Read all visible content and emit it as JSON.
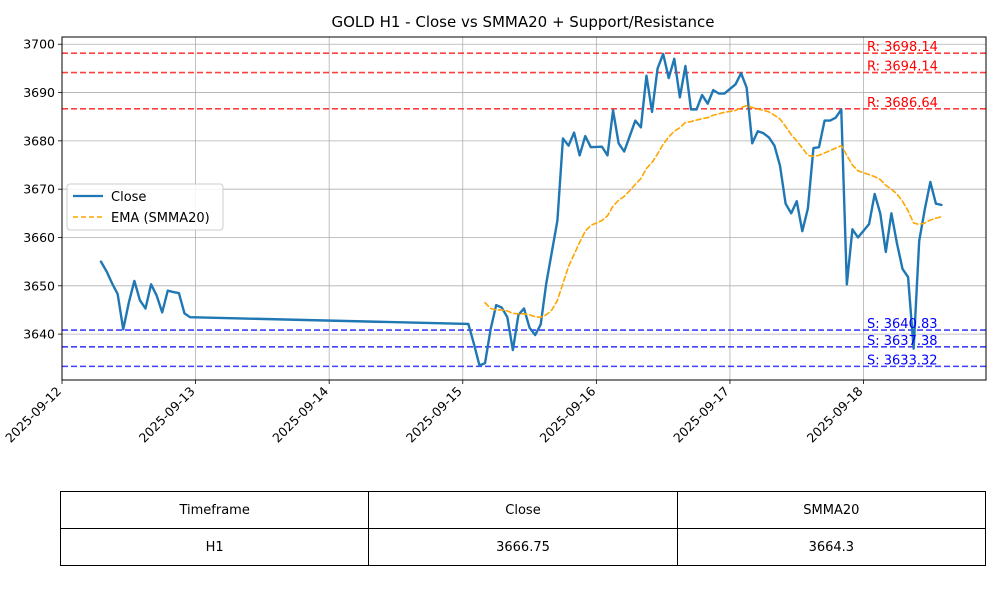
{
  "chart_data": {
    "type": "line",
    "title": "GOLD H1 - Close vs SMMA20 + Support/Resistance",
    "xlabel": "",
    "ylabel": "",
    "xlim": [
      "2025-09-12 00:00",
      "2025-09-18 22:00"
    ],
    "ylim": [
      3630.5,
      3701.5
    ],
    "x_ticks": [
      "2025-09-12",
      "2025-09-13",
      "2025-09-14",
      "2025-09-15",
      "2025-09-16",
      "2025-09-17",
      "2025-09-18"
    ],
    "y_ticks": [
      3640,
      3650,
      3660,
      3670,
      3680,
      3690,
      3700
    ],
    "grid": true,
    "legend": "center-left",
    "series": [
      {
        "name": "Close",
        "color": "#1f77b4",
        "style": "solid",
        "points": [
          [
            "2025-09-12 07:00",
            3655.0
          ],
          [
            "2025-09-12 08:00",
            3653.0
          ],
          [
            "2025-09-12 09:00",
            3650.5
          ],
          [
            "2025-09-12 10:00",
            3648.3
          ],
          [
            "2025-09-12 11:00",
            3641.0
          ],
          [
            "2025-09-12 12:00",
            3646.5
          ],
          [
            "2025-09-12 13:00",
            3651.0
          ],
          [
            "2025-09-12 14:00",
            3647.0
          ],
          [
            "2025-09-12 15:00",
            3645.3
          ],
          [
            "2025-09-12 16:00",
            3650.3
          ],
          [
            "2025-09-12 17:00",
            3648.0
          ],
          [
            "2025-09-12 18:00",
            3644.5
          ],
          [
            "2025-09-12 19:00",
            3649.0
          ],
          [
            "2025-09-12 20:00",
            3648.7
          ],
          [
            "2025-09-12 21:00",
            3648.5
          ],
          [
            "2025-09-12 22:00",
            3644.3
          ],
          [
            "2025-09-12 23:00",
            3643.5
          ],
          [
            "2025-09-15 01:00",
            3642.1
          ],
          [
            "2025-09-15 02:00",
            3638.0
          ],
          [
            "2025-09-15 03:00",
            3633.5
          ],
          [
            "2025-09-15 04:00",
            3634.0
          ],
          [
            "2025-09-15 05:00",
            3641.0
          ],
          [
            "2025-09-15 06:00",
            3646.0
          ],
          [
            "2025-09-15 07:00",
            3645.5
          ],
          [
            "2025-09-15 08:00",
            3643.5
          ],
          [
            "2025-09-15 09:00",
            3636.7
          ],
          [
            "2025-09-15 10:00",
            3644.0
          ],
          [
            "2025-09-15 11:00",
            3645.3
          ],
          [
            "2025-09-15 12:00",
            3641.3
          ],
          [
            "2025-09-15 13:00",
            3639.8
          ],
          [
            "2025-09-15 14:00",
            3642.0
          ],
          [
            "2025-09-15 15:00",
            3650.5
          ],
          [
            "2025-09-15 16:00",
            3657.0
          ],
          [
            "2025-09-15 17:00",
            3663.5
          ],
          [
            "2025-09-15 18:00",
            3680.5
          ],
          [
            "2025-09-15 19:00",
            3679.0
          ],
          [
            "2025-09-15 20:00",
            3681.7
          ],
          [
            "2025-09-15 21:00",
            3677.0
          ],
          [
            "2025-09-15 22:00",
            3681.0
          ],
          [
            "2025-09-15 23:00",
            3678.7
          ],
          [
            "2025-09-16 01:00",
            3678.8
          ],
          [
            "2025-09-16 02:00",
            3677.0
          ],
          [
            "2025-09-16 03:00",
            3686.3
          ],
          [
            "2025-09-16 04:00",
            3679.5
          ],
          [
            "2025-09-16 05:00",
            3677.8
          ],
          [
            "2025-09-16 06:00",
            3681.0
          ],
          [
            "2025-09-16 07:00",
            3684.2
          ],
          [
            "2025-09-16 08:00",
            3682.8
          ],
          [
            "2025-09-16 09:00",
            3693.5
          ],
          [
            "2025-09-16 10:00",
            3686.0
          ],
          [
            "2025-09-16 11:00",
            3695.0
          ],
          [
            "2025-09-16 12:00",
            3698.0
          ],
          [
            "2025-09-16 13:00",
            3693.0
          ],
          [
            "2025-09-16 14:00",
            3697.0
          ],
          [
            "2025-09-16 15:00",
            3689.0
          ],
          [
            "2025-09-16 16:00",
            3695.5
          ],
          [
            "2025-09-16 17:00",
            3686.5
          ],
          [
            "2025-09-16 18:00",
            3686.5
          ],
          [
            "2025-09-16 19:00",
            3689.5
          ],
          [
            "2025-09-16 20:00",
            3687.7
          ],
          [
            "2025-09-16 21:00",
            3690.5
          ],
          [
            "2025-09-16 22:00",
            3689.8
          ],
          [
            "2025-09-16 23:00",
            3689.8
          ],
          [
            "2025-09-17 01:00",
            3691.7
          ],
          [
            "2025-09-17 02:00",
            3694.0
          ],
          [
            "2025-09-17 03:00",
            3691.0
          ],
          [
            "2025-09-17 04:00",
            3679.5
          ],
          [
            "2025-09-17 05:00",
            3682.0
          ],
          [
            "2025-09-17 06:00",
            3681.6
          ],
          [
            "2025-09-17 07:00",
            3680.7
          ],
          [
            "2025-09-17 08:00",
            3679.0
          ],
          [
            "2025-09-17 09:00",
            3674.8
          ],
          [
            "2025-09-17 10:00",
            3667.0
          ],
          [
            "2025-09-17 11:00",
            3665.0
          ],
          [
            "2025-09-17 12:00",
            3667.5
          ],
          [
            "2025-09-17 13:00",
            3661.3
          ],
          [
            "2025-09-17 14:00",
            3666.0
          ],
          [
            "2025-09-17 15:00",
            3678.5
          ],
          [
            "2025-09-17 16:00",
            3678.7
          ],
          [
            "2025-09-17 17:00",
            3684.2
          ],
          [
            "2025-09-17 18:00",
            3684.2
          ],
          [
            "2025-09-17 19:00",
            3684.8
          ],
          [
            "2025-09-17 20:00",
            3686.5
          ],
          [
            "2025-09-17 21:00",
            3650.3
          ],
          [
            "2025-09-17 22:00",
            3661.7
          ],
          [
            "2025-09-17 23:00",
            3660.0
          ],
          [
            "2025-09-18 01:00",
            3662.8
          ],
          [
            "2025-09-18 02:00",
            3669.0
          ],
          [
            "2025-09-18 03:00",
            3665.0
          ],
          [
            "2025-09-18 04:00",
            3657.0
          ],
          [
            "2025-09-18 05:00",
            3665.0
          ],
          [
            "2025-09-18 06:00",
            3658.8
          ],
          [
            "2025-09-18 07:00",
            3653.5
          ],
          [
            "2025-09-18 08:00",
            3651.8
          ],
          [
            "2025-09-18 09:00",
            3637.0
          ],
          [
            "2025-09-18 10:00",
            3659.3
          ],
          [
            "2025-09-18 11:00",
            3665.8
          ],
          [
            "2025-09-18 12:00",
            3671.5
          ],
          [
            "2025-09-18 13:00",
            3667.0
          ],
          [
            "2025-09-18 14:00",
            3666.75
          ]
        ]
      },
      {
        "name": "EMA (SMMA20)",
        "color": "#ffa500",
        "style": "dashed",
        "points": [
          [
            "2025-09-15 04:00",
            3646.5
          ],
          [
            "2025-09-15 05:00",
            3645.3
          ],
          [
            "2025-09-15 06:00",
            3645.0
          ],
          [
            "2025-09-15 07:00",
            3645.0
          ],
          [
            "2025-09-15 08:00",
            3644.8
          ],
          [
            "2025-09-15 09:00",
            3644.3
          ],
          [
            "2025-09-15 10:00",
            3644.2
          ],
          [
            "2025-09-15 11:00",
            3644.2
          ],
          [
            "2025-09-15 12:00",
            3644.0
          ],
          [
            "2025-09-15 13:00",
            3643.6
          ],
          [
            "2025-09-15 14:00",
            3643.5
          ],
          [
            "2025-09-15 15:00",
            3644.0
          ],
          [
            "2025-09-15 16:00",
            3645.0
          ],
          [
            "2025-09-15 17:00",
            3647.0
          ],
          [
            "2025-09-15 18:00",
            3650.5
          ],
          [
            "2025-09-15 19:00",
            3654.0
          ],
          [
            "2025-09-15 20:00",
            3656.5
          ],
          [
            "2025-09-15 21:00",
            3659.0
          ],
          [
            "2025-09-15 22:00",
            3661.3
          ],
          [
            "2025-09-15 23:00",
            3662.5
          ],
          [
            "2025-09-16 01:00",
            3663.5
          ],
          [
            "2025-09-16 02:00",
            3664.5
          ],
          [
            "2025-09-16 03:00",
            3666.5
          ],
          [
            "2025-09-16 04:00",
            3667.7
          ],
          [
            "2025-09-16 05:00",
            3668.5
          ],
          [
            "2025-09-16 06:00",
            3669.7
          ],
          [
            "2025-09-16 07:00",
            3671.0
          ],
          [
            "2025-09-16 08:00",
            3672.2
          ],
          [
            "2025-09-16 09:00",
            3674.3
          ],
          [
            "2025-09-16 10:00",
            3675.5
          ],
          [
            "2025-09-16 11:00",
            3677.3
          ],
          [
            "2025-09-16 12:00",
            3679.3
          ],
          [
            "2025-09-16 13:00",
            3680.8
          ],
          [
            "2025-09-16 14:00",
            3682.0
          ],
          [
            "2025-09-16 15:00",
            3682.7
          ],
          [
            "2025-09-16 16:00",
            3683.8
          ],
          [
            "2025-09-16 17:00",
            3684.0
          ],
          [
            "2025-09-16 18:00",
            3684.3
          ],
          [
            "2025-09-16 19:00",
            3684.6
          ],
          [
            "2025-09-16 20:00",
            3684.8
          ],
          [
            "2025-09-16 21:00",
            3685.3
          ],
          [
            "2025-09-16 22:00",
            3685.6
          ],
          [
            "2025-09-16 23:00",
            3685.9
          ],
          [
            "2025-09-17 01:00",
            3686.3
          ],
          [
            "2025-09-17 02:00",
            3686.9
          ],
          [
            "2025-09-17 03:00",
            3687.3
          ],
          [
            "2025-09-17 04:00",
            3686.9
          ],
          [
            "2025-09-17 05:00",
            3686.6
          ],
          [
            "2025-09-17 06:00",
            3686.3
          ],
          [
            "2025-09-17 07:00",
            3686.0
          ],
          [
            "2025-09-17 08:00",
            3685.3
          ],
          [
            "2025-09-17 09:00",
            3684.5
          ],
          [
            "2025-09-17 10:00",
            3683.0
          ],
          [
            "2025-09-17 11:00",
            3681.3
          ],
          [
            "2025-09-17 12:00",
            3680.0
          ],
          [
            "2025-09-17 13:00",
            3678.5
          ],
          [
            "2025-09-17 14:00",
            3677.0
          ],
          [
            "2025-09-17 15:00",
            3676.8
          ],
          [
            "2025-09-17 16:00",
            3677.0
          ],
          [
            "2025-09-17 17:00",
            3677.5
          ],
          [
            "2025-09-17 18:00",
            3678.0
          ],
          [
            "2025-09-17 19:00",
            3678.5
          ],
          [
            "2025-09-17 20:00",
            3679.0
          ],
          [
            "2025-09-17 21:00",
            3677.0
          ],
          [
            "2025-09-17 22:00",
            3675.0
          ],
          [
            "2025-09-17 23:00",
            3673.8
          ],
          [
            "2025-09-18 01:00",
            3673.0
          ],
          [
            "2025-09-18 02:00",
            3672.6
          ],
          [
            "2025-09-18 03:00",
            3672.0
          ],
          [
            "2025-09-18 04:00",
            3670.8
          ],
          [
            "2025-09-18 05:00",
            3670.0
          ],
          [
            "2025-09-18 06:00",
            3669.0
          ],
          [
            "2025-09-18 07:00",
            3667.5
          ],
          [
            "2025-09-18 08:00",
            3665.5
          ],
          [
            "2025-09-18 09:00",
            3663.0
          ],
          [
            "2025-09-18 10:00",
            3662.7
          ],
          [
            "2025-09-18 11:00",
            3663.0
          ],
          [
            "2025-09-18 12:00",
            3663.6
          ],
          [
            "2025-09-18 13:00",
            3664.0
          ],
          [
            "2025-09-18 14:00",
            3664.3
          ]
        ]
      }
    ],
    "levels": [
      {
        "kind": "resistance",
        "label": "R: 3698.14",
        "value": 3698.14,
        "color": "#ff0000"
      },
      {
        "kind": "resistance",
        "label": "R: 3694.14",
        "value": 3694.14,
        "color": "#ff0000"
      },
      {
        "kind": "resistance",
        "label": "R: 3686.64",
        "value": 3686.64,
        "color": "#ff0000"
      },
      {
        "kind": "support",
        "label": "S: 3640.83",
        "value": 3640.83,
        "color": "#0000ff"
      },
      {
        "kind": "support",
        "label": "S: 3637.38",
        "value": 3637.38,
        "color": "#0000ff"
      },
      {
        "kind": "support",
        "label": "S: 3633.32",
        "value": 3633.32,
        "color": "#0000ff"
      }
    ]
  },
  "table": {
    "headers": [
      "Timeframe",
      "Close",
      "SMMA20"
    ],
    "rows": [
      [
        "H1",
        "3666.75",
        "3664.3"
      ]
    ]
  }
}
